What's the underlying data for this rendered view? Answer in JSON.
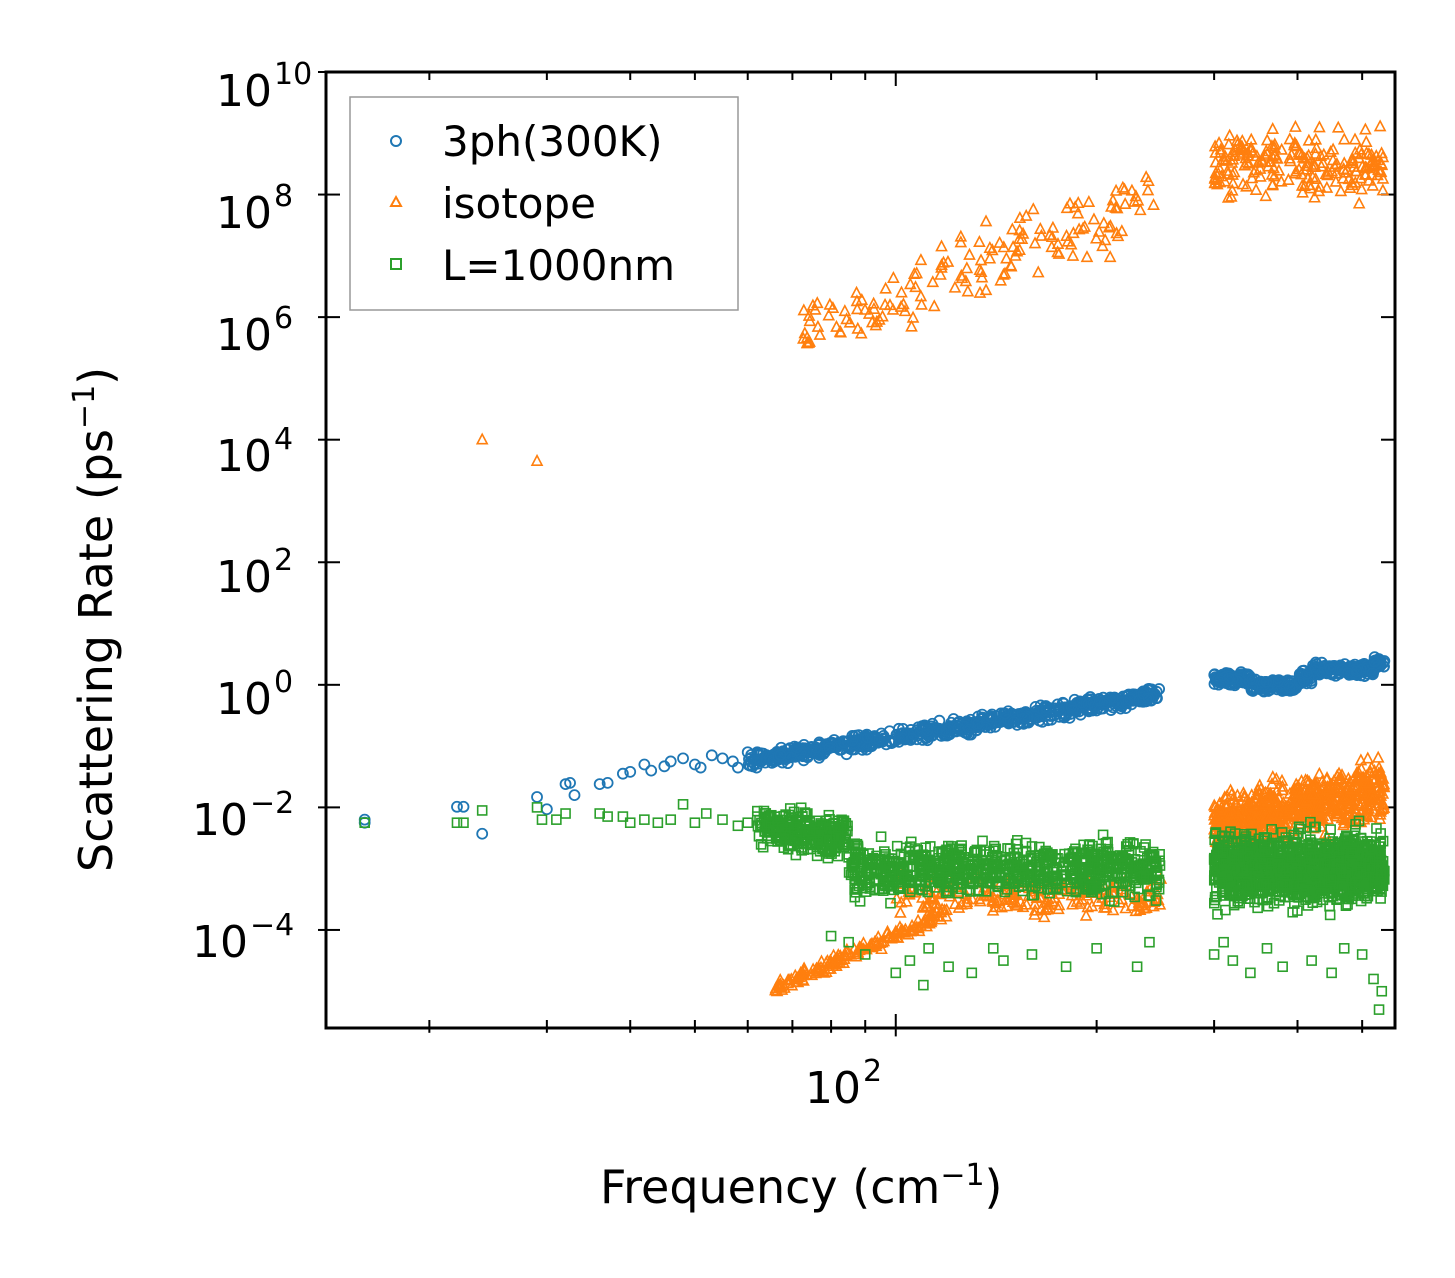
{
  "chart_data": {
    "type": "scatter",
    "title": "",
    "xlabel": "Frequency (cm",
    "xlabel_sup": "−1",
    "xlabel_end": ")",
    "ylabel": "Scattering Rate (ps",
    "ylabel_sup": "−1",
    "ylabel_end": ")",
    "xscale": "log",
    "yscale": "log",
    "xlim": [
      14,
      560
    ],
    "ylim_exp": [
      -5.6,
      10
    ],
    "x_ticks": [
      {
        "base": "10",
        "exp": "2"
      }
    ],
    "y_ticks": [
      {
        "base": "10",
        "exp": "10",
        "value_exp": 10
      },
      {
        "base": "10",
        "exp": "8",
        "value_exp": 8
      },
      {
        "base": "10",
        "exp": "6",
        "value_exp": 6
      },
      {
        "base": "10",
        "exp": "4",
        "value_exp": 4
      },
      {
        "base": "10",
        "exp": "2",
        "value_exp": 2
      },
      {
        "base": "10",
        "exp": "0",
        "value_exp": 0
      },
      {
        "base": "10",
        "exp": "−2",
        "value_exp": -2
      },
      {
        "base": "10",
        "exp": "−4",
        "value_exp": -4
      }
    ],
    "legend_position": "top-left",
    "series": [
      {
        "name": "3ph(300K)",
        "marker": "circle",
        "color": "#1f77b4",
        "sample_points": [
          [
            16,
            -2.2
          ],
          [
            22,
            -2.0
          ],
          [
            22.5,
            -2.0
          ],
          [
            24,
            -2.4
          ],
          [
            29,
            -1.8
          ],
          [
            30,
            -2.0
          ],
          [
            32,
            -1.6
          ],
          [
            33,
            -1.8
          ],
          [
            36,
            -1.6
          ],
          [
            39,
            -1.4
          ],
          [
            42,
            -1.2
          ],
          [
            50,
            -1.3
          ],
          [
            60,
            -1.1
          ],
          [
            75,
            -0.8
          ],
          [
            100,
            -1.0
          ],
          [
            130,
            -0.6
          ],
          [
            160,
            -0.4
          ],
          [
            200,
            -0.2
          ],
          [
            250,
            -0.15
          ],
          [
            300,
            0.1
          ],
          [
            350,
            -0.1
          ],
          [
            400,
            0.2
          ],
          [
            450,
            0.25
          ],
          [
            520,
            0.3
          ]
        ]
      },
      {
        "name": "isotope",
        "marker": "triangle",
        "color": "#ff7f0e",
        "sample_points": [
          [
            24,
            4.0
          ],
          [
            29,
            3.6
          ],
          [
            71,
            5.6
          ],
          [
            73,
            5.1
          ],
          [
            76,
            6.4
          ],
          [
            80,
            5.6
          ],
          [
            90,
            6.8
          ],
          [
            100,
            7.3
          ],
          [
            110,
            6.0
          ],
          [
            120,
            7.2
          ],
          [
            140,
            7.8
          ],
          [
            160,
            7.5
          ],
          [
            180,
            8.2
          ],
          [
            200,
            7.6
          ],
          [
            250,
            8.3
          ],
          [
            300,
            8.9
          ],
          [
            350,
            8.5
          ],
          [
            400,
            8.8
          ],
          [
            450,
            8.3
          ],
          [
            520,
            9.1
          ],
          [
            530,
            8.5
          ]
        ]
      },
      {
        "name": "L=1000nm",
        "marker": "square",
        "color": "#2ca02c",
        "sample_points": [
          [
            16,
            -2.2
          ],
          [
            22,
            -2.2
          ],
          [
            24,
            -2.0
          ],
          [
            29,
            -2.0
          ],
          [
            32,
            -2.1
          ],
          [
            39,
            -2.1
          ],
          [
            50,
            -2.1
          ],
          [
            60,
            -2.3
          ],
          [
            75,
            -2.5
          ],
          [
            90,
            -3.0
          ],
          [
            110,
            -3.1
          ],
          [
            140,
            -2.9
          ],
          [
            170,
            -3.0
          ],
          [
            200,
            -3.2
          ],
          [
            250,
            -3.1
          ],
          [
            300,
            -3.0
          ],
          [
            350,
            -2.9
          ],
          [
            400,
            -2.9
          ],
          [
            450,
            -3.0
          ],
          [
            520,
            -2.8
          ]
        ]
      }
    ]
  }
}
